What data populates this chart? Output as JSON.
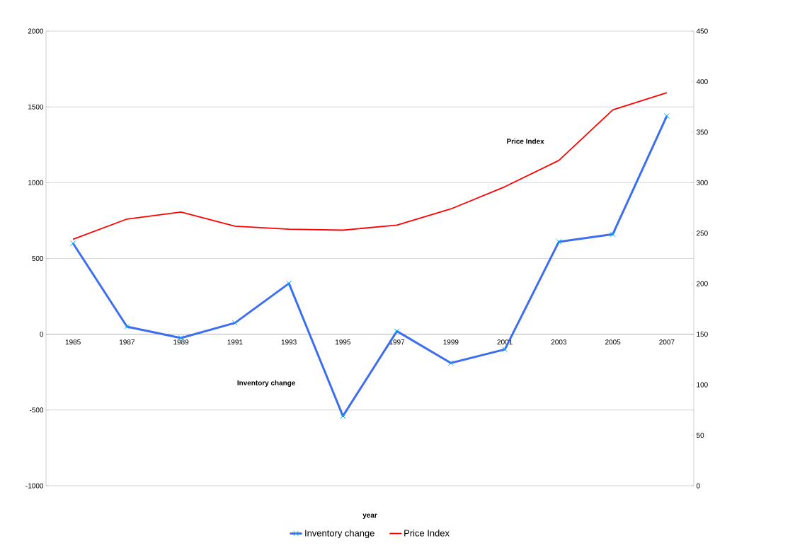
{
  "chart_data": {
    "type": "line",
    "xlabel": "year",
    "categories": [
      "1985",
      "1987",
      "1989",
      "1991",
      "1993",
      "1995",
      "1997",
      "1999",
      "2001",
      "2003",
      "2005",
      "2007"
    ],
    "series": [
      {
        "name": "Inventory change",
        "color": "#3e6ef0",
        "marker": "cross",
        "values": [
          600,
          50,
          -25,
          75,
          335,
          -540,
          20,
          -190,
          -100,
          610,
          660,
          1440
        ]
      },
      {
        "name": "Price Index",
        "color": "#ff0000",
        "axis": "y2",
        "marker": "none",
        "values": [
          244,
          264,
          271,
          257,
          254,
          253,
          258,
          274,
          296,
          322,
          372,
          389
        ]
      }
    ],
    "ylim": [
      -1000,
      2000
    ],
    "yticks": [
      -1000,
      -500,
      0,
      500,
      1000,
      1500,
      2000
    ],
    "y2lim": [
      0,
      450
    ],
    "y2ticks": [
      0,
      50,
      100,
      150,
      200,
      250,
      300,
      350,
      400,
      450
    ],
    "grid": "y",
    "legend": "bottom",
    "annotations": [
      "Price Index",
      "Inventory change"
    ]
  }
}
